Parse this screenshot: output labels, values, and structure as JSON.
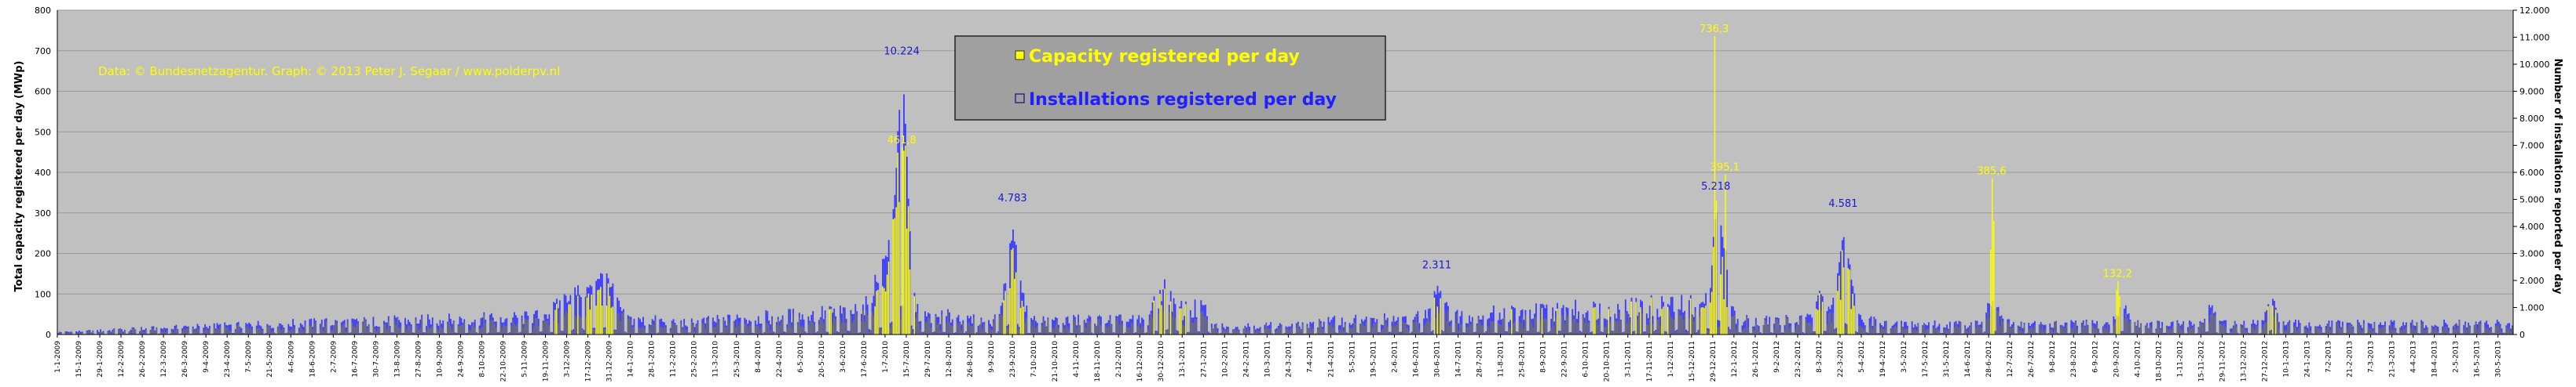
{
  "chart_data": {
    "type": "bar",
    "title": "",
    "watermark": "Data: © Bundesnetzagentur. Graph: © 2013 Peter J. Segaar / www.polderpv.nl",
    "ylabel_left": "Total capacity registered per day (MWp)",
    "ylabel_right": "Number of installations reported per day",
    "ylim_left": [
      0,
      800
    ],
    "ylim_right": [
      0,
      12000
    ],
    "yticks_left": [
      "0",
      "100",
      "200",
      "300",
      "400",
      "500",
      "600",
      "700",
      "800"
    ],
    "yticks_right": [
      "0",
      "1.000",
      "2.000",
      "3.000",
      "4.000",
      "5.000",
      "6.000",
      "7.000",
      "8.000",
      "9.000",
      "10.000",
      "11.000",
      "12.000"
    ],
    "grid": true,
    "legend_position": "top-center",
    "colors": {
      "plot_bg": "#c0c0c0",
      "capacity": "#ffff00",
      "capacity_outline": "#555555",
      "installations": "#3c3cff",
      "legend_bg": "#a0a0a0"
    },
    "series": [
      {
        "name": "Capacity registered per day",
        "axis": "left",
        "color": "#ffff00"
      },
      {
        "name": "Installations registered per day",
        "axis": "right",
        "color": "#3c3cff"
      }
    ],
    "x_tick_labels": [
      "1-1-2009",
      "15-1-2009",
      "29-1-2009",
      "12-2-2009",
      "26-2-2009",
      "12-3-2009",
      "26-3-2009",
      "9-4-2009",
      "23-4-2009",
      "7-5-2009",
      "21-5-2009",
      "4-6-2009",
      "18-6-2009",
      "2-7-2009",
      "16-7-2009",
      "30-7-2009",
      "13-8-2009",
      "27-8-2009",
      "10-9-2009",
      "24-9-2009",
      "8-10-2009",
      "22-10-2009",
      "5-11-2009",
      "19-11-2009",
      "3-12-2009",
      "17-12-2009",
      "31-12-2009",
      "14-1-2010",
      "28-1-2010",
      "11-2-2010",
      "25-2-2010",
      "11-3-2010",
      "25-3-2010",
      "8-4-2010",
      "22-4-2010",
      "6-5-2010",
      "20-5-2010",
      "3-6-2010",
      "17-6-2010",
      "1-7-2010",
      "15-7-2010",
      "29-7-2010",
      "12-8-2010",
      "26-8-2010",
      "9-9-2010",
      "23-9-2010",
      "7-10-2010",
      "21-10-2010",
      "4-11-2010",
      "18-11-2010",
      "2-12-2010",
      "16-12-2010",
      "30-12-2010",
      "13-1-2011",
      "27-1-2011",
      "10-2-2011",
      "24-2-2011",
      "10-3-2011",
      "24-3-2011",
      "7-4-2011",
      "21-4-2011",
      "5-5-2011",
      "19-5-2011",
      "2-6-2011",
      "16-6-2011",
      "30-6-2011",
      "14-7-2011",
      "28-7-2011",
      "11-8-2011",
      "25-8-2011",
      "8-9-2011",
      "22-9-2011",
      "6-10-2011",
      "20-10-2011",
      "3-11-2011",
      "17-11-2011",
      "1-12-2011",
      "15-12-2011",
      "29-12-2011",
      "12-1-2012",
      "26-1-2012",
      "9-2-2012",
      "23-2-2012",
      "8-3-2012",
      "22-3-2012",
      "5-4-2012",
      "19-4-2012",
      "3-5-2012",
      "17-5-2012",
      "31-5-2012",
      "14-6-2012",
      "28-6-2012",
      "12-7-2012",
      "26-7-2012",
      "9-8-2012",
      "23-8-2012",
      "6-9-2012",
      "20-9-2012",
      "4-10-2012",
      "18-10-2012",
      "1-11-2012",
      "15-11-2012",
      "29-11-2012",
      "13-12-2012",
      "27-12-2012",
      "10-1-2013",
      "24-1-2013",
      "7-2-2013",
      "21-2-2013",
      "7-3-2013",
      "21-3-2013",
      "4-4-2013",
      "18-4-2013",
      "2-5-2013",
      "16-5-2013",
      "30-5-2013"
    ],
    "annotations": [
      {
        "series": "installations",
        "text": "10.224",
        "day": 557,
        "value": 10224
      },
      {
        "series": "capacity",
        "text": "461,8",
        "day": 557,
        "value": 461.8
      },
      {
        "series": "installations",
        "text": "4.783",
        "day": 630,
        "value": 4783
      },
      {
        "series": "installations",
        "text": "2.311",
        "day": 910,
        "value": 2311
      },
      {
        "series": "capacity",
        "text": "736,3",
        "day": 1093,
        "value": 736.3
      },
      {
        "series": "installations",
        "text": "5.218",
        "day": 1094,
        "value": 5218
      },
      {
        "series": "capacity",
        "text": "395,1",
        "day": 1100,
        "value": 395.1
      },
      {
        "series": "installations",
        "text": "4.581",
        "day": 1178,
        "value": 4581
      },
      {
        "series": "capacity",
        "text": "385,6",
        "day": 1276,
        "value": 385.6
      },
      {
        "series": "capacity",
        "text": "132,2",
        "day": 1359,
        "value": 132.2
      }
    ]
  },
  "legend": {
    "capacity_label": "Capacity registered per day",
    "installations_label": "Installations registered per day"
  }
}
